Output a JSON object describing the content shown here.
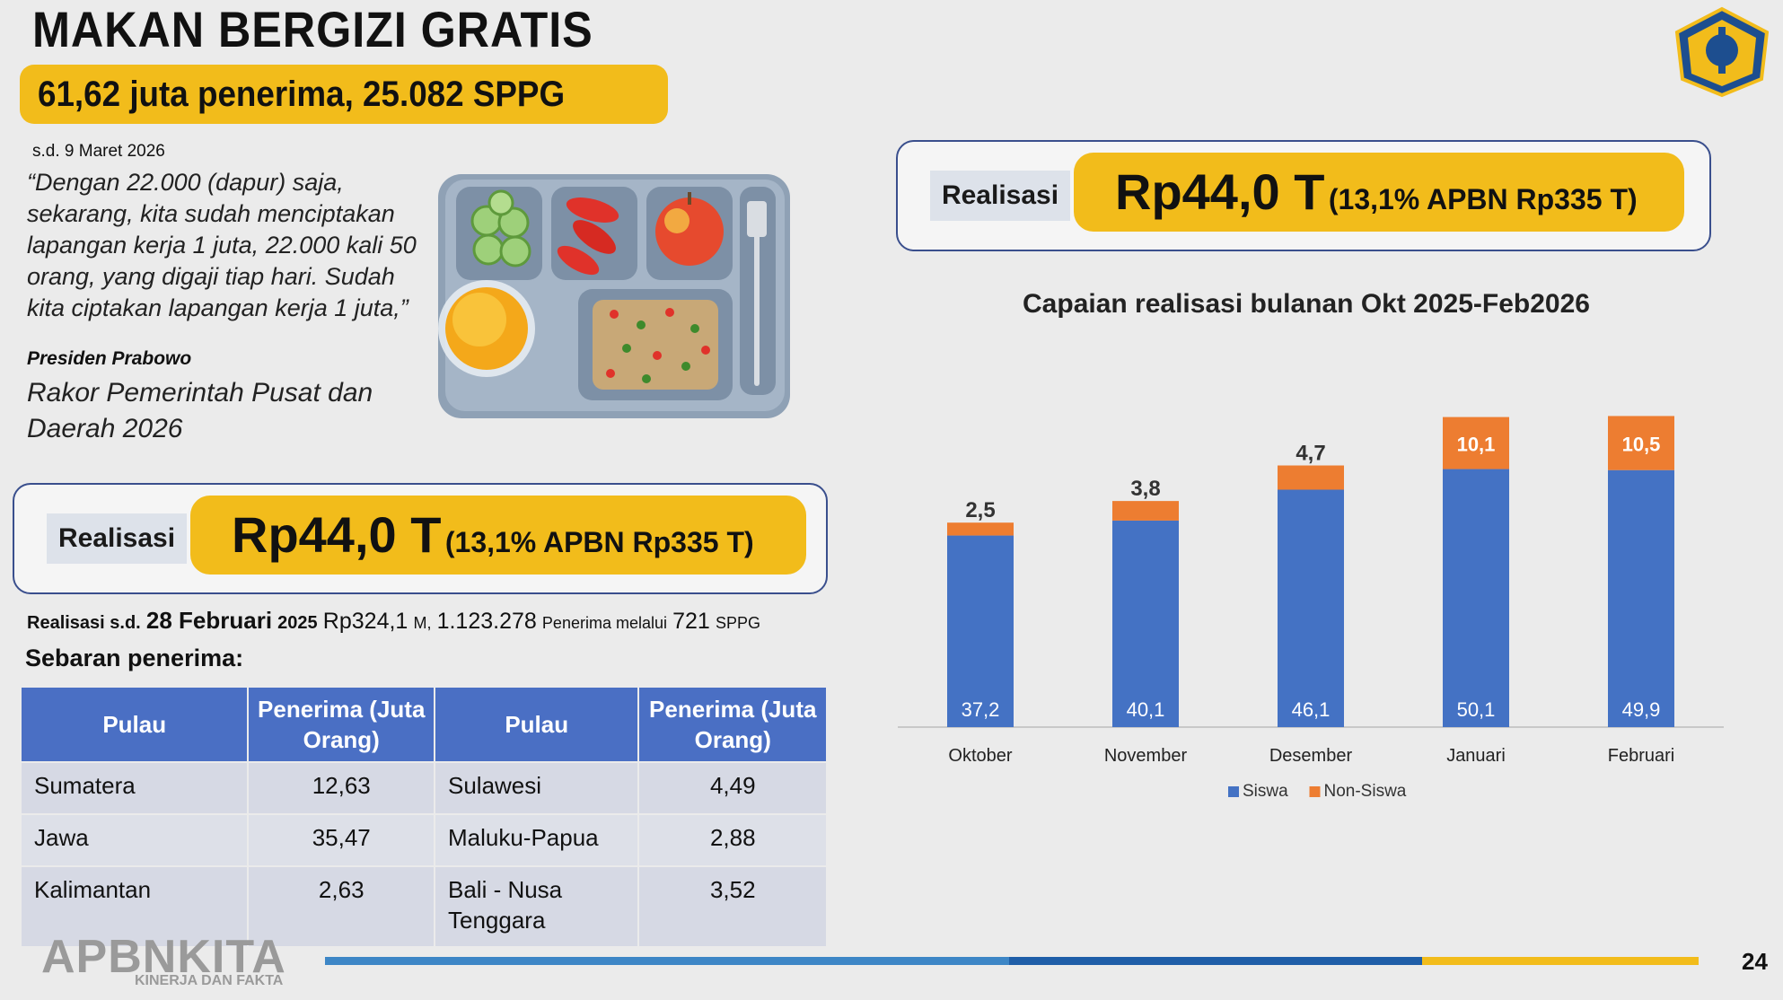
{
  "title": "MAKAN BERGIZI GRATIS",
  "sub_banner": "61,62 juta penerima, 25.082 SPPG",
  "as_of": "s.d. 9 Maret 2026",
  "quote": "“Dengan 22.000 (dapur) saja, sekarang, kita sudah menciptakan lapangan kerja 1 juta, 22.000 kali 50 orang, yang digaji tiap hari. Sudah kita ciptakan lapangan kerja 1 juta,”",
  "speaker": "Presiden Prabowo",
  "event": "Rakor Pemerintah Pusat dan Daerah 2026",
  "realisasi": {
    "label": "Realisasi",
    "value": "Rp44,0 T",
    "detail": "(13,1% APBN Rp335 T)"
  },
  "realisasi_line": {
    "prefix": "Realisasi s.d.",
    "date": "28 Februari",
    "year": "2025",
    "amount": "Rp324,1",
    "unit": "M,",
    "recipients": "1.123.278",
    "recipients_text": "Penerima melalui",
    "sppg_count": "721",
    "sppg_label": "SPPG"
  },
  "sebaran_title": "Sebaran penerima:",
  "table": {
    "headers": [
      "Pulau",
      "Penerima (Juta Orang)",
      "Pulau",
      "Penerima (Juta Orang)"
    ],
    "rows": [
      [
        "Sumatera",
        "12,63",
        "Sulawesi",
        "4,49"
      ],
      [
        "Jawa",
        "35,47",
        "Maluku-Papua",
        "2,88"
      ],
      [
        "Kalimantan",
        "2,63",
        "Bali - Nusa Tenggara",
        "3,52"
      ]
    ]
  },
  "chart_data": {
    "type": "bar",
    "stacked": true,
    "title": "Capaian realisasi bulanan Okt 2025-Feb2026",
    "categories": [
      "Oktober",
      "November",
      "Desember",
      "Januari",
      "Februari"
    ],
    "series": [
      {
        "name": "Siswa",
        "color": "#4472c4",
        "values": [
          37.2,
          40.1,
          46.1,
          50.1,
          49.9
        ],
        "labels": [
          "37,2",
          "40,1",
          "46,1",
          "50,1",
          "49,9"
        ]
      },
      {
        "name": "Non-Siswa",
        "color": "#ed7d31",
        "values": [
          2.5,
          3.8,
          4.7,
          10.1,
          10.5
        ],
        "labels": [
          "2,5",
          "3,8",
          "4,7",
          "10,1",
          "10,5"
        ]
      }
    ],
    "ylim": [
      0,
      61
    ],
    "legend": "bottom",
    "grid": false
  },
  "footer": {
    "logo": "APBNKITA",
    "tagline": "KINERJA DAN FAKTA",
    "page": "24",
    "bar_colors": [
      "#3d86c6",
      "#1f5ea8",
      "#f2bc1b"
    ]
  }
}
